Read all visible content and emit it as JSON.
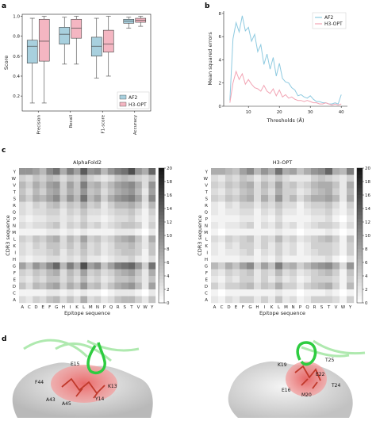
{
  "panels": {
    "a": "a",
    "b": "b",
    "c": "c",
    "d": "d"
  },
  "chart_data": [
    {
      "id": "a",
      "type": "box",
      "categories": [
        "Precision",
        "Recall",
        "F1-score",
        "Accuracy"
      ],
      "ylabel": "Score",
      "ylim": [
        0.05,
        1.02
      ],
      "yticks": [
        0.2,
        0.4,
        0.6,
        0.8,
        1.0
      ],
      "ytick_labels": [
        "0.2",
        "0.4",
        "0.6",
        "0.8",
        "1.0"
      ],
      "legend_position": "bottom-right",
      "series": [
        {
          "name": "AF2",
          "color": "#a8d0de",
          "boxes": [
            {
              "whislo": 0.13,
              "q1": 0.53,
              "med": 0.7,
              "q3": 0.76,
              "whishi": 0.98
            },
            {
              "whislo": 0.52,
              "q1": 0.72,
              "med": 0.82,
              "q3": 0.89,
              "whishi": 0.99
            },
            {
              "whislo": 0.38,
              "q1": 0.6,
              "med": 0.7,
              "q3": 0.79,
              "whishi": 0.98
            },
            {
              "whislo": 0.88,
              "q1": 0.93,
              "med": 0.95,
              "q3": 0.97,
              "whishi": 0.99
            }
          ]
        },
        {
          "name": "H3-OPT",
          "color": "#f4b6c2",
          "boxes": [
            {
              "whislo": 0.13,
              "q1": 0.55,
              "med": 0.75,
              "q3": 0.97,
              "whishi": 1.0
            },
            {
              "whislo": 0.52,
              "q1": 0.78,
              "med": 0.88,
              "q3": 0.97,
              "whishi": 1.0
            },
            {
              "whislo": 0.4,
              "q1": 0.64,
              "med": 0.72,
              "q3": 0.86,
              "whishi": 1.0
            },
            {
              "whislo": 0.9,
              "q1": 0.94,
              "med": 0.96,
              "q3": 0.98,
              "whishi": 1.0
            }
          ]
        }
      ]
    },
    {
      "id": "b",
      "type": "line",
      "xlabel": "Thresholds (Å)",
      "ylabel": "Mean squared errors",
      "xlim": [
        2,
        42
      ],
      "ylim": [
        0,
        8.2
      ],
      "xticks": [
        10,
        20,
        30,
        40
      ],
      "yticks": [
        0,
        2,
        4,
        6,
        8
      ],
      "legend_position": "top-right",
      "x": [
        4,
        5,
        6,
        7,
        8,
        9,
        10,
        11,
        12,
        13,
        14,
        15,
        16,
        17,
        18,
        19,
        20,
        21,
        22,
        23,
        24,
        25,
        26,
        27,
        28,
        29,
        30,
        31,
        32,
        33,
        34,
        35,
        36,
        37,
        38,
        39,
        40
      ],
      "series": [
        {
          "name": "AF2",
          "color": "#8ecae0",
          "values": [
            0.5,
            5.8,
            7.2,
            6.4,
            7.8,
            6.5,
            6.8,
            5.6,
            6.2,
            4.7,
            5.3,
            3.6,
            4.5,
            3.2,
            4.2,
            2.6,
            3.7,
            2.4,
            2.1,
            2.0,
            1.6,
            1.4,
            0.9,
            1.0,
            0.8,
            0.7,
            0.9,
            0.6,
            0.4,
            0.4,
            0.3,
            0.3,
            0.2,
            0.2,
            0.3,
            0.2,
            1.0
          ]
        },
        {
          "name": "H3-OPT",
          "color": "#f2a4b4",
          "values": [
            0.3,
            2.0,
            3.0,
            2.3,
            2.8,
            1.9,
            2.3,
            1.9,
            1.6,
            1.5,
            1.3,
            1.8,
            1.3,
            1.1,
            1.5,
            0.9,
            1.4,
            0.8,
            1.0,
            0.7,
            0.8,
            0.6,
            0.5,
            0.5,
            0.4,
            0.5,
            0.4,
            0.3,
            0.3,
            0.2,
            0.2,
            0.3,
            0.2,
            0.1,
            0.2,
            0.1,
            0.2
          ]
        }
      ]
    },
    {
      "id": "c1",
      "type": "heatmap",
      "title": "AlphaFold2",
      "xlabel": "Epitope sequence",
      "ylabel": "CDR3 sequence",
      "x": [
        "A",
        "C",
        "D",
        "E",
        "F",
        "G",
        "H",
        "I",
        "K",
        "L",
        "M",
        "N",
        "P",
        "Q",
        "R",
        "S",
        "T",
        "V",
        "W",
        "Y"
      ],
      "y": [
        "Y",
        "W",
        "V",
        "T",
        "S",
        "R",
        "Q",
        "P",
        "N",
        "M",
        "L",
        "K",
        "I",
        "H",
        "G",
        "F",
        "E",
        "D",
        "C",
        "A"
      ],
      "vmin": 0,
      "vmax": 20,
      "colorbar_ticks": [
        0,
        2,
        4,
        6,
        8,
        10,
        12,
        14,
        16,
        18,
        20
      ],
      "values": [
        [
          9,
          9,
          8,
          6,
          10,
          12,
          7,
          11,
          8,
          14,
          9,
          10,
          6,
          9,
          11,
          12,
          15,
          9,
          7,
          13
        ],
        [
          4,
          3,
          5,
          4,
          6,
          5,
          3,
          5,
          4,
          7,
          4,
          3,
          2,
          3,
          5,
          6,
          5,
          4,
          3,
          5
        ],
        [
          6,
          4,
          7,
          5,
          8,
          9,
          4,
          8,
          5,
          11,
          6,
          7,
          4,
          6,
          8,
          9,
          10,
          7,
          3,
          9
        ],
        [
          5,
          3,
          6,
          4,
          7,
          8,
          4,
          7,
          5,
          9,
          5,
          6,
          3,
          5,
          7,
          8,
          9,
          6,
          2,
          8
        ],
        [
          6,
          4,
          7,
          6,
          8,
          10,
          5,
          9,
          6,
          12,
          6,
          8,
          4,
          7,
          9,
          10,
          11,
          8,
          3,
          10
        ],
        [
          3,
          2,
          4,
          3,
          5,
          6,
          3,
          5,
          4,
          7,
          4,
          5,
          2,
          4,
          6,
          6,
          7,
          5,
          2,
          6
        ],
        [
          3,
          2,
          3,
          3,
          4,
          4,
          2,
          4,
          3,
          5,
          3,
          3,
          2,
          3,
          4,
          4,
          5,
          3,
          1,
          4
        ],
        [
          2,
          1,
          2,
          2,
          3,
          3,
          2,
          3,
          2,
          4,
          2,
          2,
          1,
          2,
          3,
          3,
          4,
          2,
          1,
          3
        ],
        [
          3,
          2,
          3,
          3,
          4,
          5,
          2,
          4,
          3,
          5,
          3,
          4,
          2,
          3,
          4,
          5,
          5,
          4,
          1,
          4
        ],
        [
          1,
          1,
          1,
          1,
          2,
          2,
          1,
          2,
          1,
          2,
          1,
          1,
          1,
          1,
          2,
          2,
          2,
          1,
          0,
          2
        ],
        [
          4,
          3,
          5,
          4,
          6,
          7,
          3,
          6,
          4,
          8,
          4,
          5,
          3,
          4,
          6,
          7,
          8,
          5,
          2,
          7
        ],
        [
          3,
          2,
          4,
          3,
          5,
          5,
          3,
          5,
          3,
          6,
          3,
          4,
          2,
          3,
          5,
          5,
          6,
          4,
          2,
          5
        ],
        [
          3,
          2,
          3,
          3,
          4,
          5,
          2,
          4,
          3,
          5,
          3,
          4,
          2,
          3,
          4,
          5,
          5,
          4,
          1,
          5
        ],
        [
          2,
          1,
          2,
          2,
          3,
          3,
          2,
          3,
          2,
          4,
          2,
          2,
          1,
          2,
          3,
          3,
          4,
          2,
          1,
          3
        ],
        [
          8,
          5,
          9,
          7,
          10,
          13,
          6,
          11,
          7,
          15,
          8,
          10,
          5,
          8,
          11,
          12,
          13,
          9,
          4,
          12
        ],
        [
          4,
          3,
          5,
          4,
          6,
          7,
          3,
          6,
          4,
          8,
          4,
          5,
          3,
          4,
          6,
          7,
          8,
          5,
          2,
          7
        ],
        [
          3,
          2,
          4,
          3,
          5,
          5,
          3,
          5,
          3,
          6,
          3,
          4,
          2,
          3,
          5,
          5,
          6,
          4,
          2,
          5
        ],
        [
          5,
          3,
          6,
          5,
          7,
          8,
          4,
          7,
          5,
          9,
          5,
          6,
          3,
          5,
          7,
          8,
          9,
          6,
          2,
          8
        ],
        [
          1,
          1,
          1,
          1,
          2,
          2,
          1,
          2,
          1,
          2,
          1,
          1,
          0,
          1,
          2,
          2,
          2,
          1,
          0,
          2
        ],
        [
          3,
          2,
          4,
          3,
          5,
          6,
          3,
          5,
          3,
          7,
          3,
          4,
          2,
          3,
          5,
          6,
          6,
          4,
          2,
          5
        ]
      ]
    },
    {
      "id": "c2",
      "type": "heatmap",
      "title": "H3-OPT",
      "xlabel": "Epitope sequence",
      "ylabel": "CDR3 sequence",
      "x": [
        "A",
        "C",
        "D",
        "E",
        "F",
        "G",
        "H",
        "I",
        "K",
        "L",
        "M",
        "N",
        "P",
        "Q",
        "R",
        "S",
        "T",
        "V",
        "W",
        "Y"
      ],
      "y": [
        "Y",
        "W",
        "V",
        "T",
        "S",
        "R",
        "Q",
        "P",
        "N",
        "M",
        "L",
        "K",
        "I",
        "H",
        "G",
        "F",
        "E",
        "D",
        "C",
        "A"
      ],
      "vmin": 0,
      "vmax": 20,
      "colorbar_ticks": [
        0,
        2,
        4,
        6,
        8,
        10,
        12,
        14,
        16,
        18,
        20
      ],
      "values": [
        [
          7,
          7,
          6,
          5,
          8,
          10,
          6,
          9,
          7,
          12,
          7,
          8,
          5,
          7,
          9,
          10,
          13,
          7,
          6,
          11
        ],
        [
          3,
          2,
          4,
          3,
          5,
          4,
          2,
          4,
          3,
          5,
          3,
          2,
          2,
          2,
          4,
          5,
          4,
          3,
          2,
          4
        ],
        [
          4,
          3,
          5,
          4,
          6,
          7,
          3,
          6,
          4,
          8,
          4,
          5,
          3,
          4,
          6,
          7,
          7,
          5,
          2,
          7
        ],
        [
          3,
          2,
          4,
          3,
          5,
          6,
          3,
          5,
          3,
          7,
          4,
          4,
          2,
          3,
          5,
          6,
          7,
          4,
          2,
          6
        ],
        [
          4,
          3,
          5,
          4,
          6,
          7,
          3,
          7,
          4,
          9,
          4,
          6,
          3,
          5,
          7,
          7,
          8,
          6,
          2,
          7
        ],
        [
          2,
          1,
          3,
          2,
          4,
          4,
          2,
          4,
          3,
          5,
          3,
          3,
          1,
          3,
          4,
          4,
          5,
          3,
          1,
          4
        ],
        [
          2,
          1,
          2,
          2,
          3,
          3,
          1,
          3,
          2,
          4,
          2,
          2,
          1,
          2,
          3,
          3,
          4,
          2,
          1,
          3
        ],
        [
          1,
          1,
          1,
          1,
          2,
          2,
          1,
          2,
          1,
          3,
          1,
          1,
          1,
          1,
          2,
          2,
          3,
          1,
          0,
          2
        ],
        [
          2,
          1,
          2,
          2,
          3,
          4,
          1,
          3,
          2,
          4,
          2,
          3,
          1,
          2,
          3,
          4,
          4,
          3,
          1,
          3
        ],
        [
          1,
          0,
          1,
          1,
          1,
          1,
          1,
          1,
          1,
          2,
          1,
          1,
          0,
          1,
          1,
          1,
          2,
          1,
          0,
          1
        ],
        [
          3,
          2,
          4,
          3,
          4,
          5,
          2,
          4,
          3,
          6,
          3,
          4,
          2,
          3,
          4,
          5,
          6,
          4,
          1,
          5
        ],
        [
          2,
          1,
          3,
          2,
          4,
          4,
          2,
          4,
          2,
          4,
          2,
          3,
          1,
          2,
          4,
          4,
          4,
          3,
          1,
          4
        ],
        [
          2,
          1,
          2,
          2,
          3,
          4,
          1,
          3,
          2,
          4,
          2,
          3,
          1,
          2,
          3,
          4,
          4,
          3,
          1,
          4
        ],
        [
          1,
          1,
          1,
          1,
          2,
          2,
          1,
          2,
          1,
          3,
          1,
          1,
          1,
          1,
          2,
          2,
          3,
          1,
          0,
          2
        ],
        [
          6,
          4,
          7,
          5,
          8,
          10,
          4,
          8,
          5,
          11,
          6,
          7,
          4,
          6,
          8,
          9,
          10,
          7,
          3,
          9
        ],
        [
          3,
          2,
          4,
          3,
          4,
          5,
          2,
          4,
          3,
          6,
          3,
          4,
          2,
          3,
          4,
          5,
          6,
          4,
          1,
          5
        ],
        [
          2,
          1,
          3,
          2,
          4,
          4,
          2,
          4,
          2,
          4,
          2,
          3,
          1,
          2,
          4,
          4,
          4,
          3,
          1,
          4
        ],
        [
          4,
          2,
          4,
          4,
          5,
          6,
          3,
          5,
          4,
          7,
          4,
          4,
          2,
          4,
          5,
          6,
          7,
          4,
          1,
          6
        ],
        [
          1,
          0,
          1,
          1,
          1,
          1,
          1,
          1,
          1,
          2,
          1,
          1,
          0,
          1,
          1,
          1,
          2,
          1,
          0,
          1
        ],
        [
          2,
          1,
          3,
          2,
          4,
          4,
          2,
          4,
          2,
          5,
          2,
          3,
          1,
          2,
          4,
          4,
          4,
          3,
          1,
          4
        ]
      ]
    }
  ],
  "structures": {
    "left_labels": [
      "E15",
      "F44",
      "K13",
      "A43",
      "A45",
      "Y14"
    ],
    "right_labels": [
      "K19",
      "T25",
      "E22",
      "E16",
      "M20",
      "T24"
    ]
  }
}
